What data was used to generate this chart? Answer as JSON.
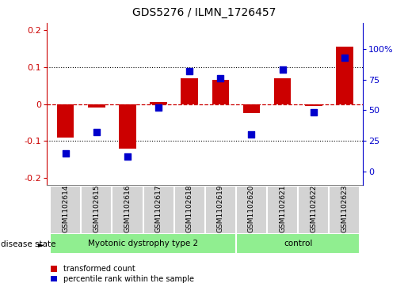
{
  "title": "GDS5276 / ILMN_1726457",
  "samples": [
    "GSM1102614",
    "GSM1102615",
    "GSM1102616",
    "GSM1102617",
    "GSM1102618",
    "GSM1102619",
    "GSM1102620",
    "GSM1102621",
    "GSM1102622",
    "GSM1102623"
  ],
  "red_values": [
    -0.09,
    -0.01,
    -0.12,
    0.005,
    0.07,
    0.065,
    -0.025,
    0.07,
    -0.005,
    0.155
  ],
  "blue_values": [
    15,
    32,
    12,
    52,
    82,
    76,
    30,
    83,
    48,
    93
  ],
  "group1_label": "Myotonic dystrophy type 2",
  "group1_count": 6,
  "group2_label": "control",
  "group2_count": 4,
  "ylim_left": [
    -0.22,
    0.22
  ],
  "ylim_right": [
    -11,
    121
  ],
  "yticks_left": [
    -0.2,
    -0.1,
    0.0,
    0.1,
    0.2
  ],
  "yticks_right": [
    0,
    25,
    50,
    75,
    100
  ],
  "red_color": "#CC0000",
  "blue_color": "#0000CC",
  "green_color": "#90EE90",
  "gray_color": "#D3D3D3",
  "bar_width": 0.55,
  "marker_size": 28,
  "title_fontsize": 10,
  "tick_fontsize": 8,
  "label_fontsize": 7,
  "disease_fontsize": 7.5,
  "sample_fontsize": 6.5,
  "legend_fontsize": 7,
  "disease_state_label": "disease state"
}
